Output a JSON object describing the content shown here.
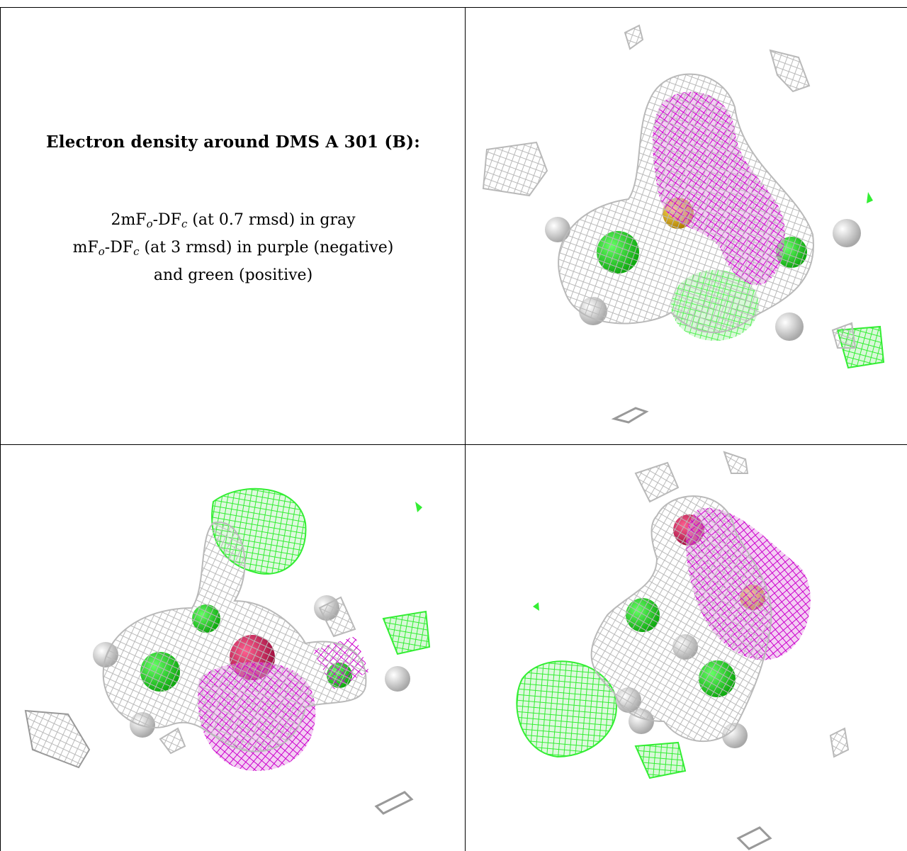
{
  "caption": {
    "title": "Electron density around DMS A 301 (B):",
    "line1": {
      "prefix": "2mF",
      "sub_o": "o",
      "mid": "-DF",
      "sub_c": "c",
      "suffix": " (at 0.7 rmsd) in gray"
    },
    "line2": {
      "prefix": "mF",
      "sub_o": "o",
      "mid": "-DF",
      "sub_c": "c",
      "suffix": " (at 3 rmsd) in purple (negative)"
    },
    "line3": "and green (positive)"
  },
  "colors": {
    "gray_mesh": "#b9b9b9",
    "purple_mesh": "#cc00cc",
    "green_mesh": "#33ee33",
    "atom_green": "#22dd22",
    "atom_sulfur": "#e0b400",
    "atom_oxygen": "#e0205a",
    "atom_hydrogen": "#eeeeee"
  },
  "panels": [
    {
      "id": "view-top-right",
      "icon": "density-map-view-1"
    },
    {
      "id": "view-bottom-left",
      "icon": "density-map-view-2"
    },
    {
      "id": "view-bottom-right",
      "icon": "density-map-view-3"
    }
  ]
}
